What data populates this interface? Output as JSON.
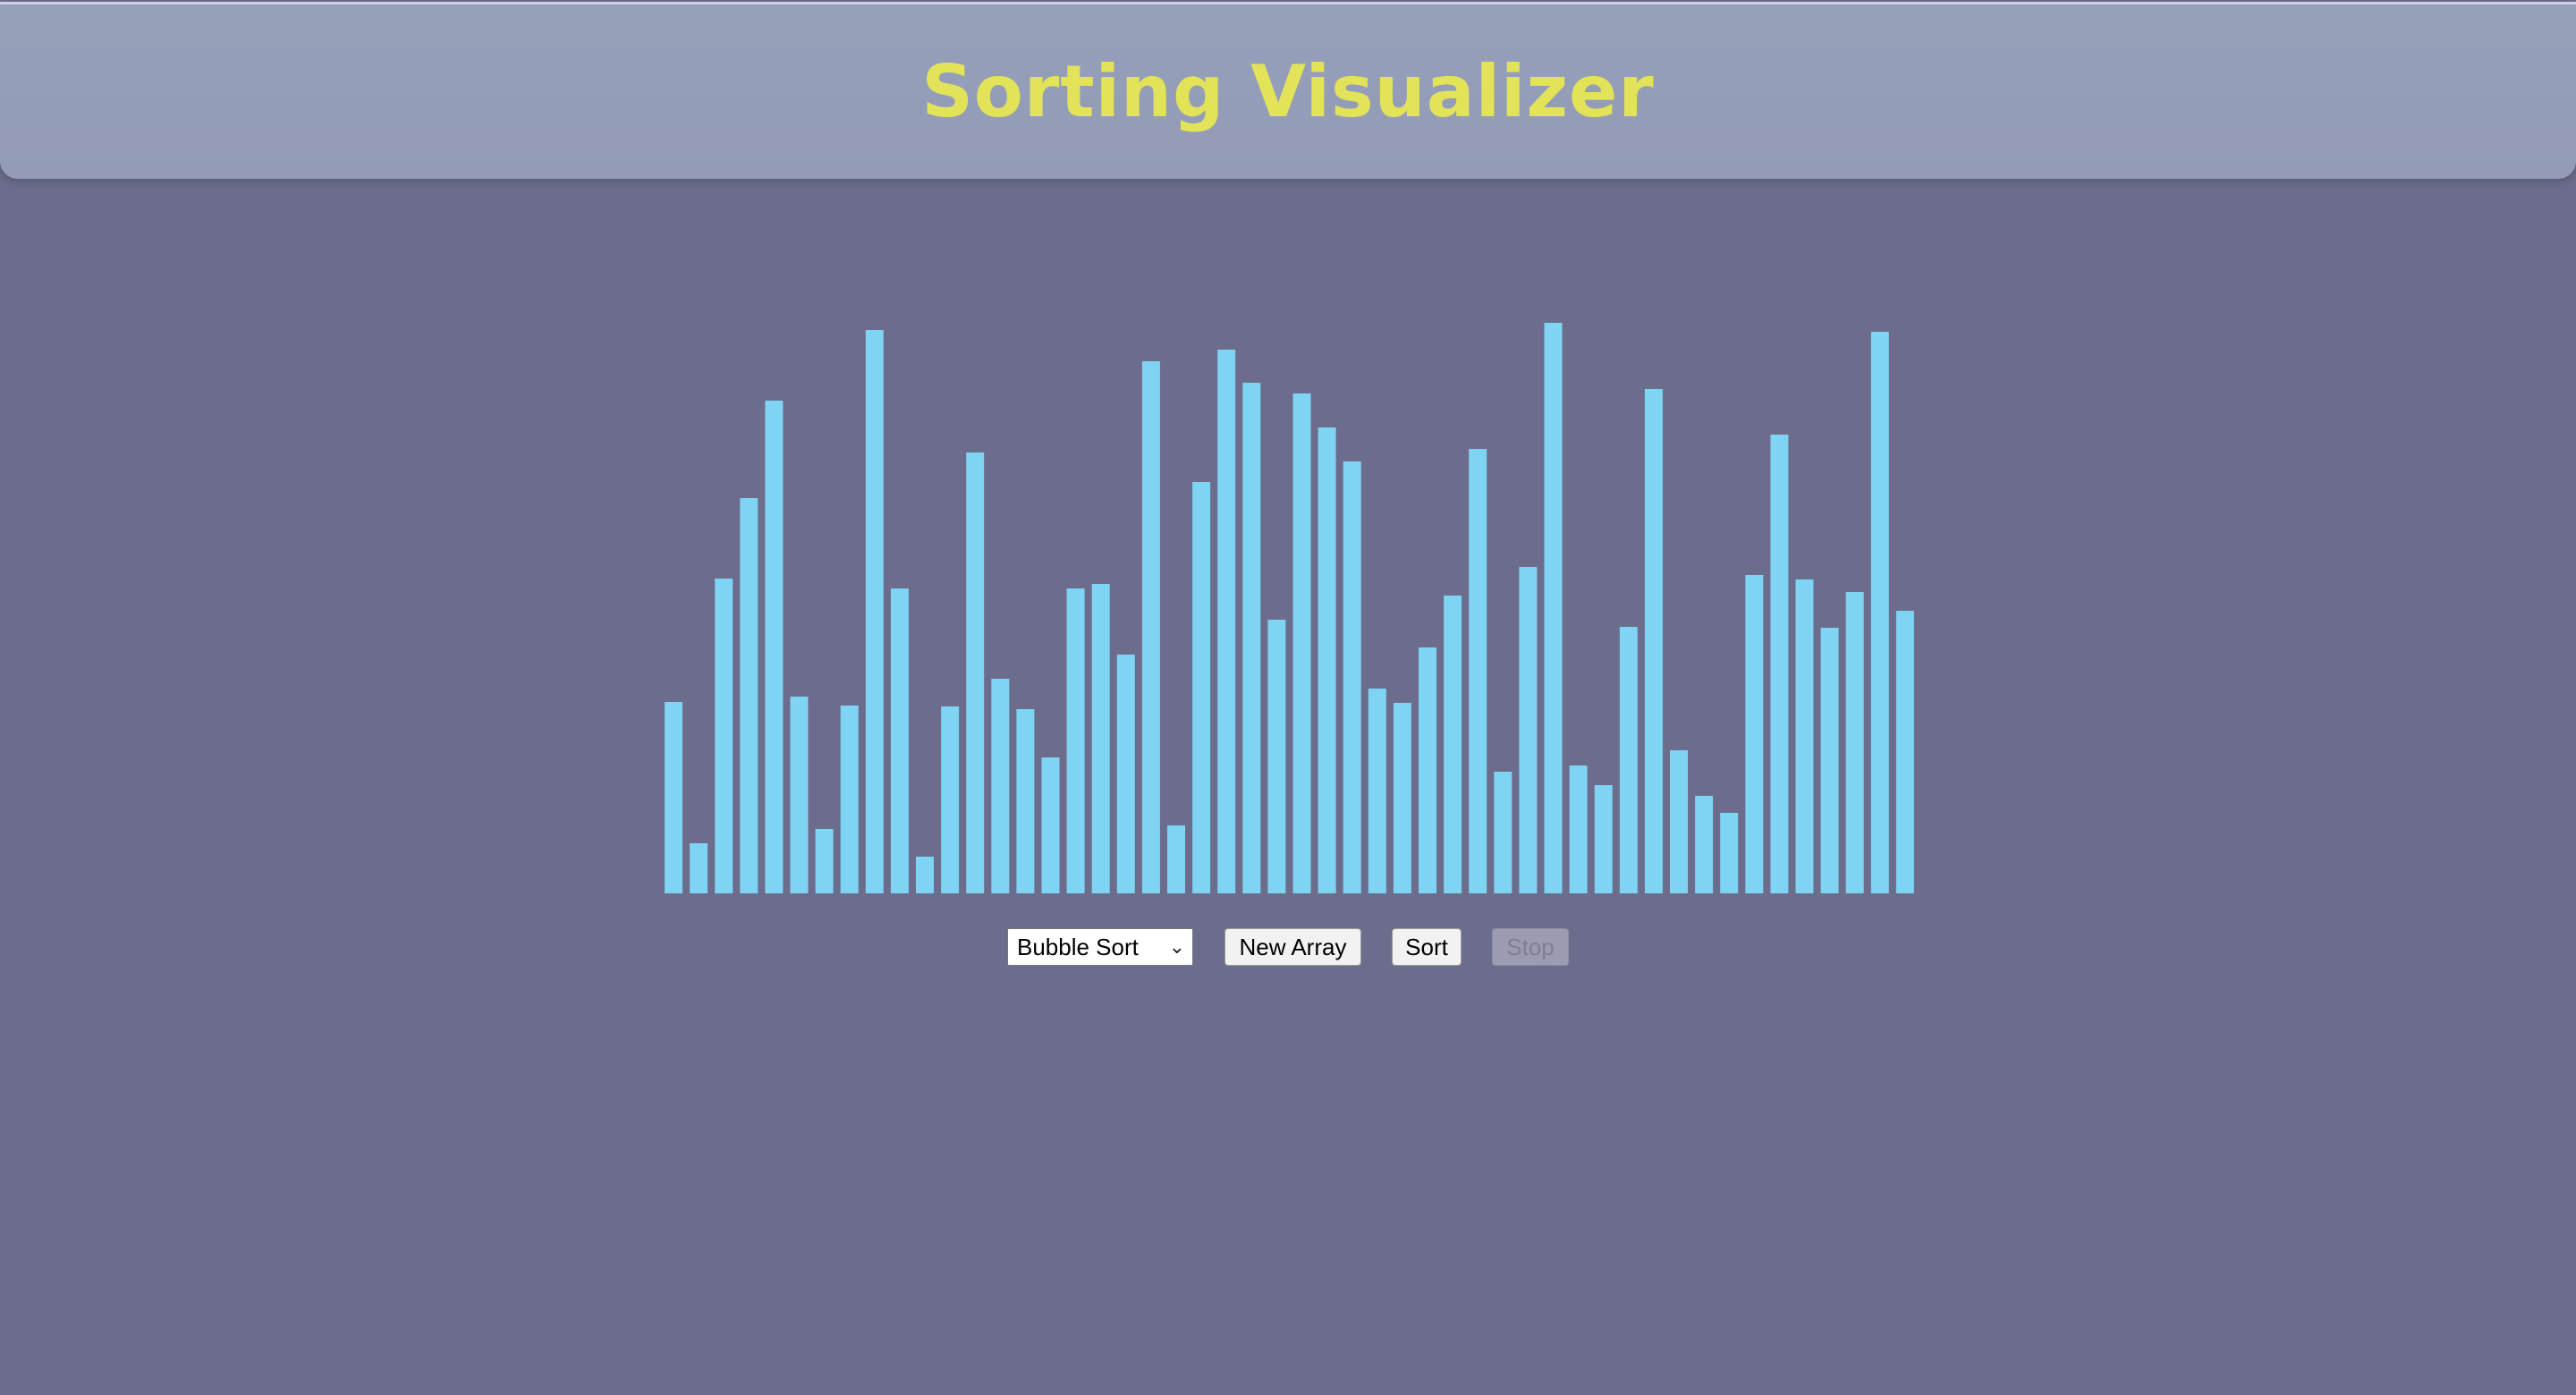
{
  "header": {
    "title": "Sorting Visualizer"
  },
  "controls": {
    "algorithm_selected": "Bubble Sort",
    "new_array_label": "New Array",
    "sort_label": "Sort",
    "stop_label": "Stop",
    "stop_disabled": true
  },
  "colors": {
    "background": "#6c6c8c",
    "header": "#959fb8",
    "title": "#e3e35a",
    "bar": "#7fd3f3"
  },
  "chart_data": {
    "type": "bar",
    "ylim": [
      0,
      640
    ],
    "values": [
      214,
      56,
      352,
      442,
      551,
      220,
      72,
      210,
      630,
      341,
      41,
      209,
      493,
      240,
      206,
      152,
      341,
      346,
      267,
      595,
      76,
      460,
      608,
      571,
      306,
      559,
      521,
      483,
      229,
      213,
      275,
      333,
      497,
      136,
      365,
      638,
      143,
      121,
      298,
      564,
      160,
      109,
      90,
      356,
      513,
      351,
      297,
      337,
      628,
      316
    ]
  }
}
